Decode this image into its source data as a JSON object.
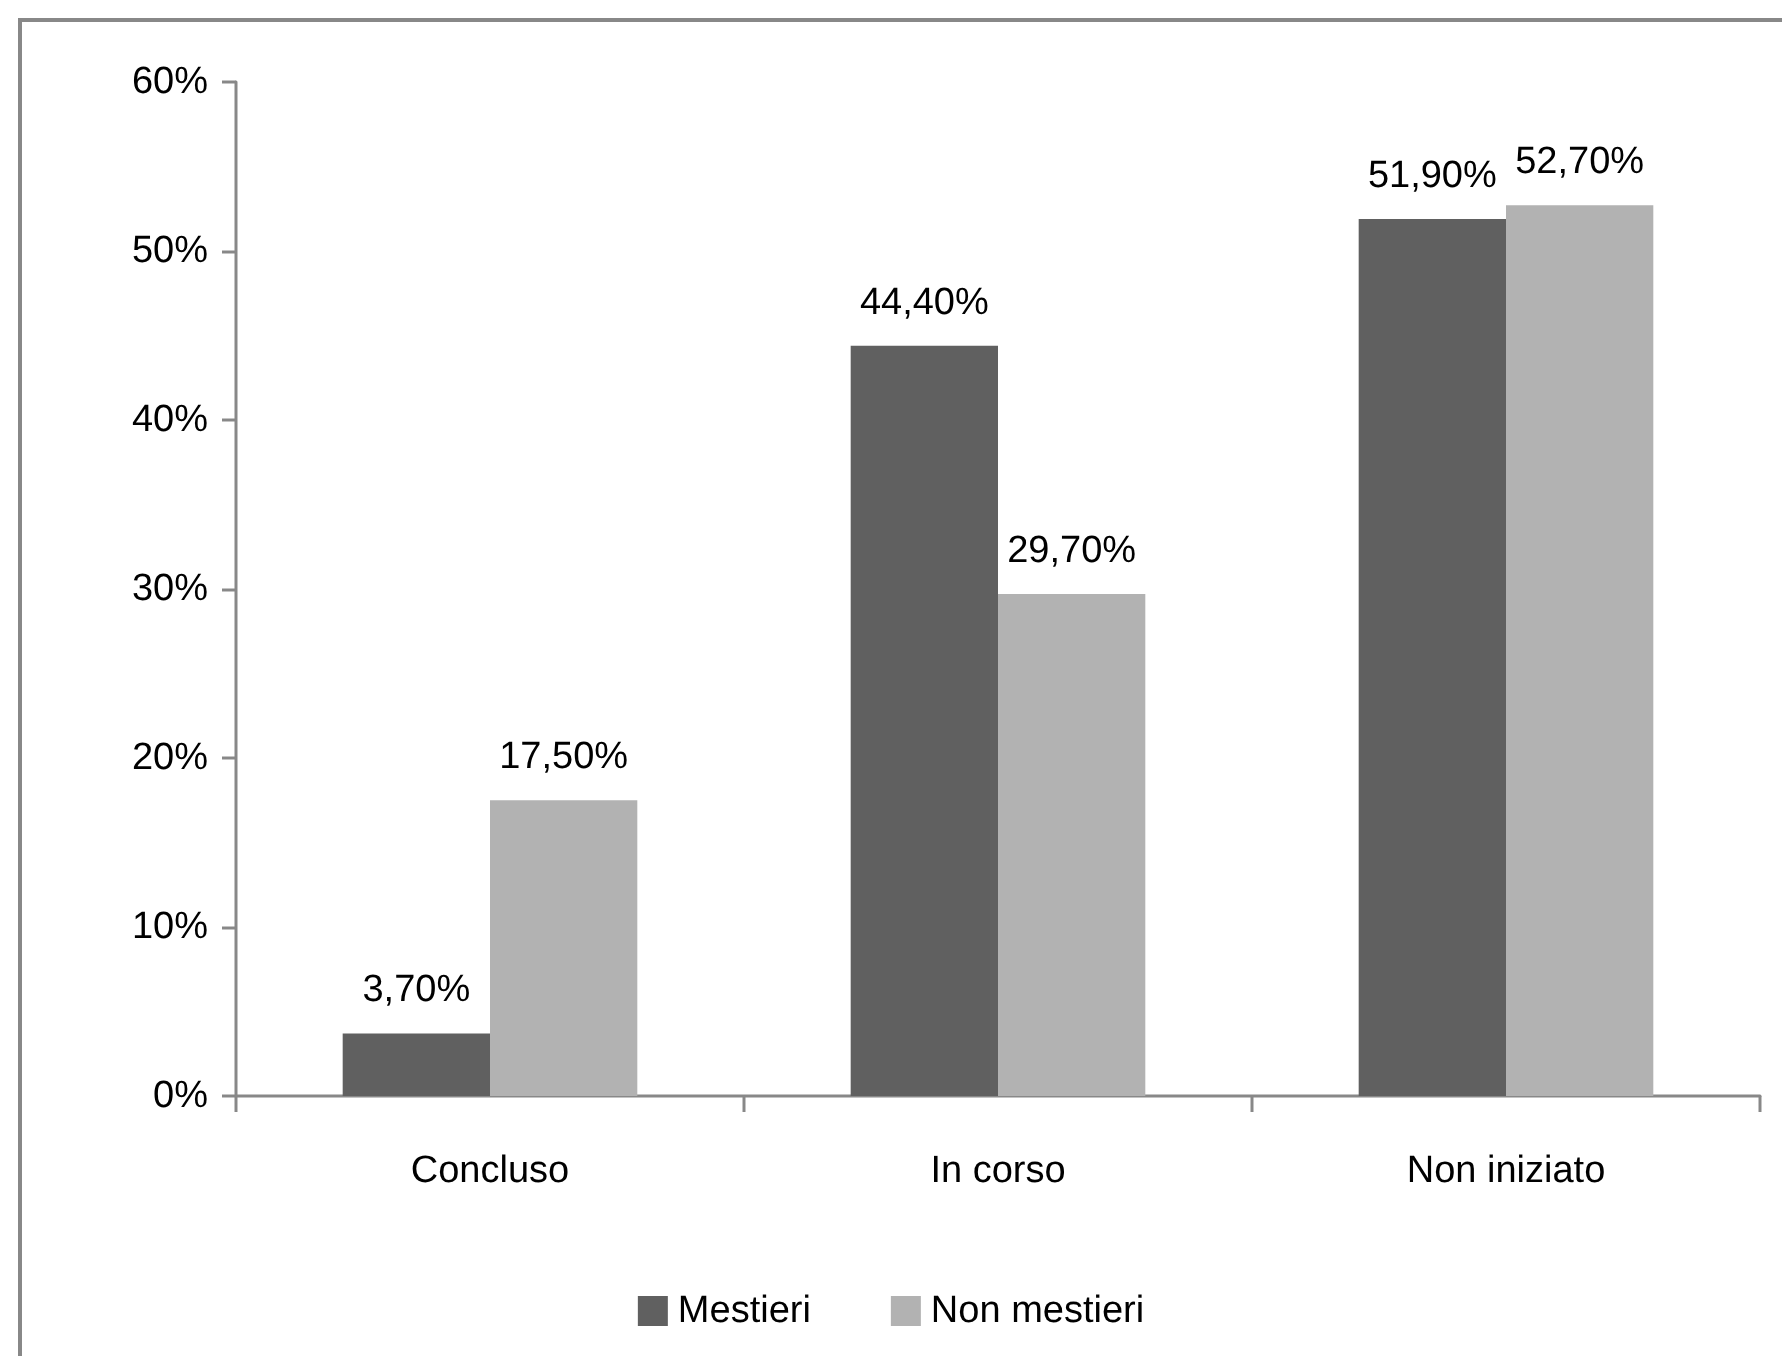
{
  "chart_data": {
    "type": "bar",
    "categories": [
      "Concluso",
      "In corso",
      "Non iniziato"
    ],
    "series": [
      {
        "name": "Mestieri",
        "color": "#606060",
        "values": [
          3.7,
          44.4,
          51.9
        ],
        "value_labels": [
          "3,70%",
          "44,40%",
          "51,90%"
        ]
      },
      {
        "name": "Non mestieri",
        "color": "#b2b2b2",
        "values": [
          17.5,
          29.7,
          52.7
        ],
        "value_labels": [
          "17,50%",
          "29,70%",
          "52,70%"
        ]
      }
    ],
    "ylim": [
      0,
      60
    ],
    "yticks": [
      {
        "value": 0,
        "label": "0%"
      },
      {
        "value": 10,
        "label": "10%"
      },
      {
        "value": 20,
        "label": "20%"
      },
      {
        "value": 30,
        "label": "30%"
      },
      {
        "value": 40,
        "label": "40%"
      },
      {
        "value": 50,
        "label": "50%"
      },
      {
        "value": 60,
        "label": "60%"
      }
    ],
    "grid": false,
    "legend": "bottom"
  }
}
